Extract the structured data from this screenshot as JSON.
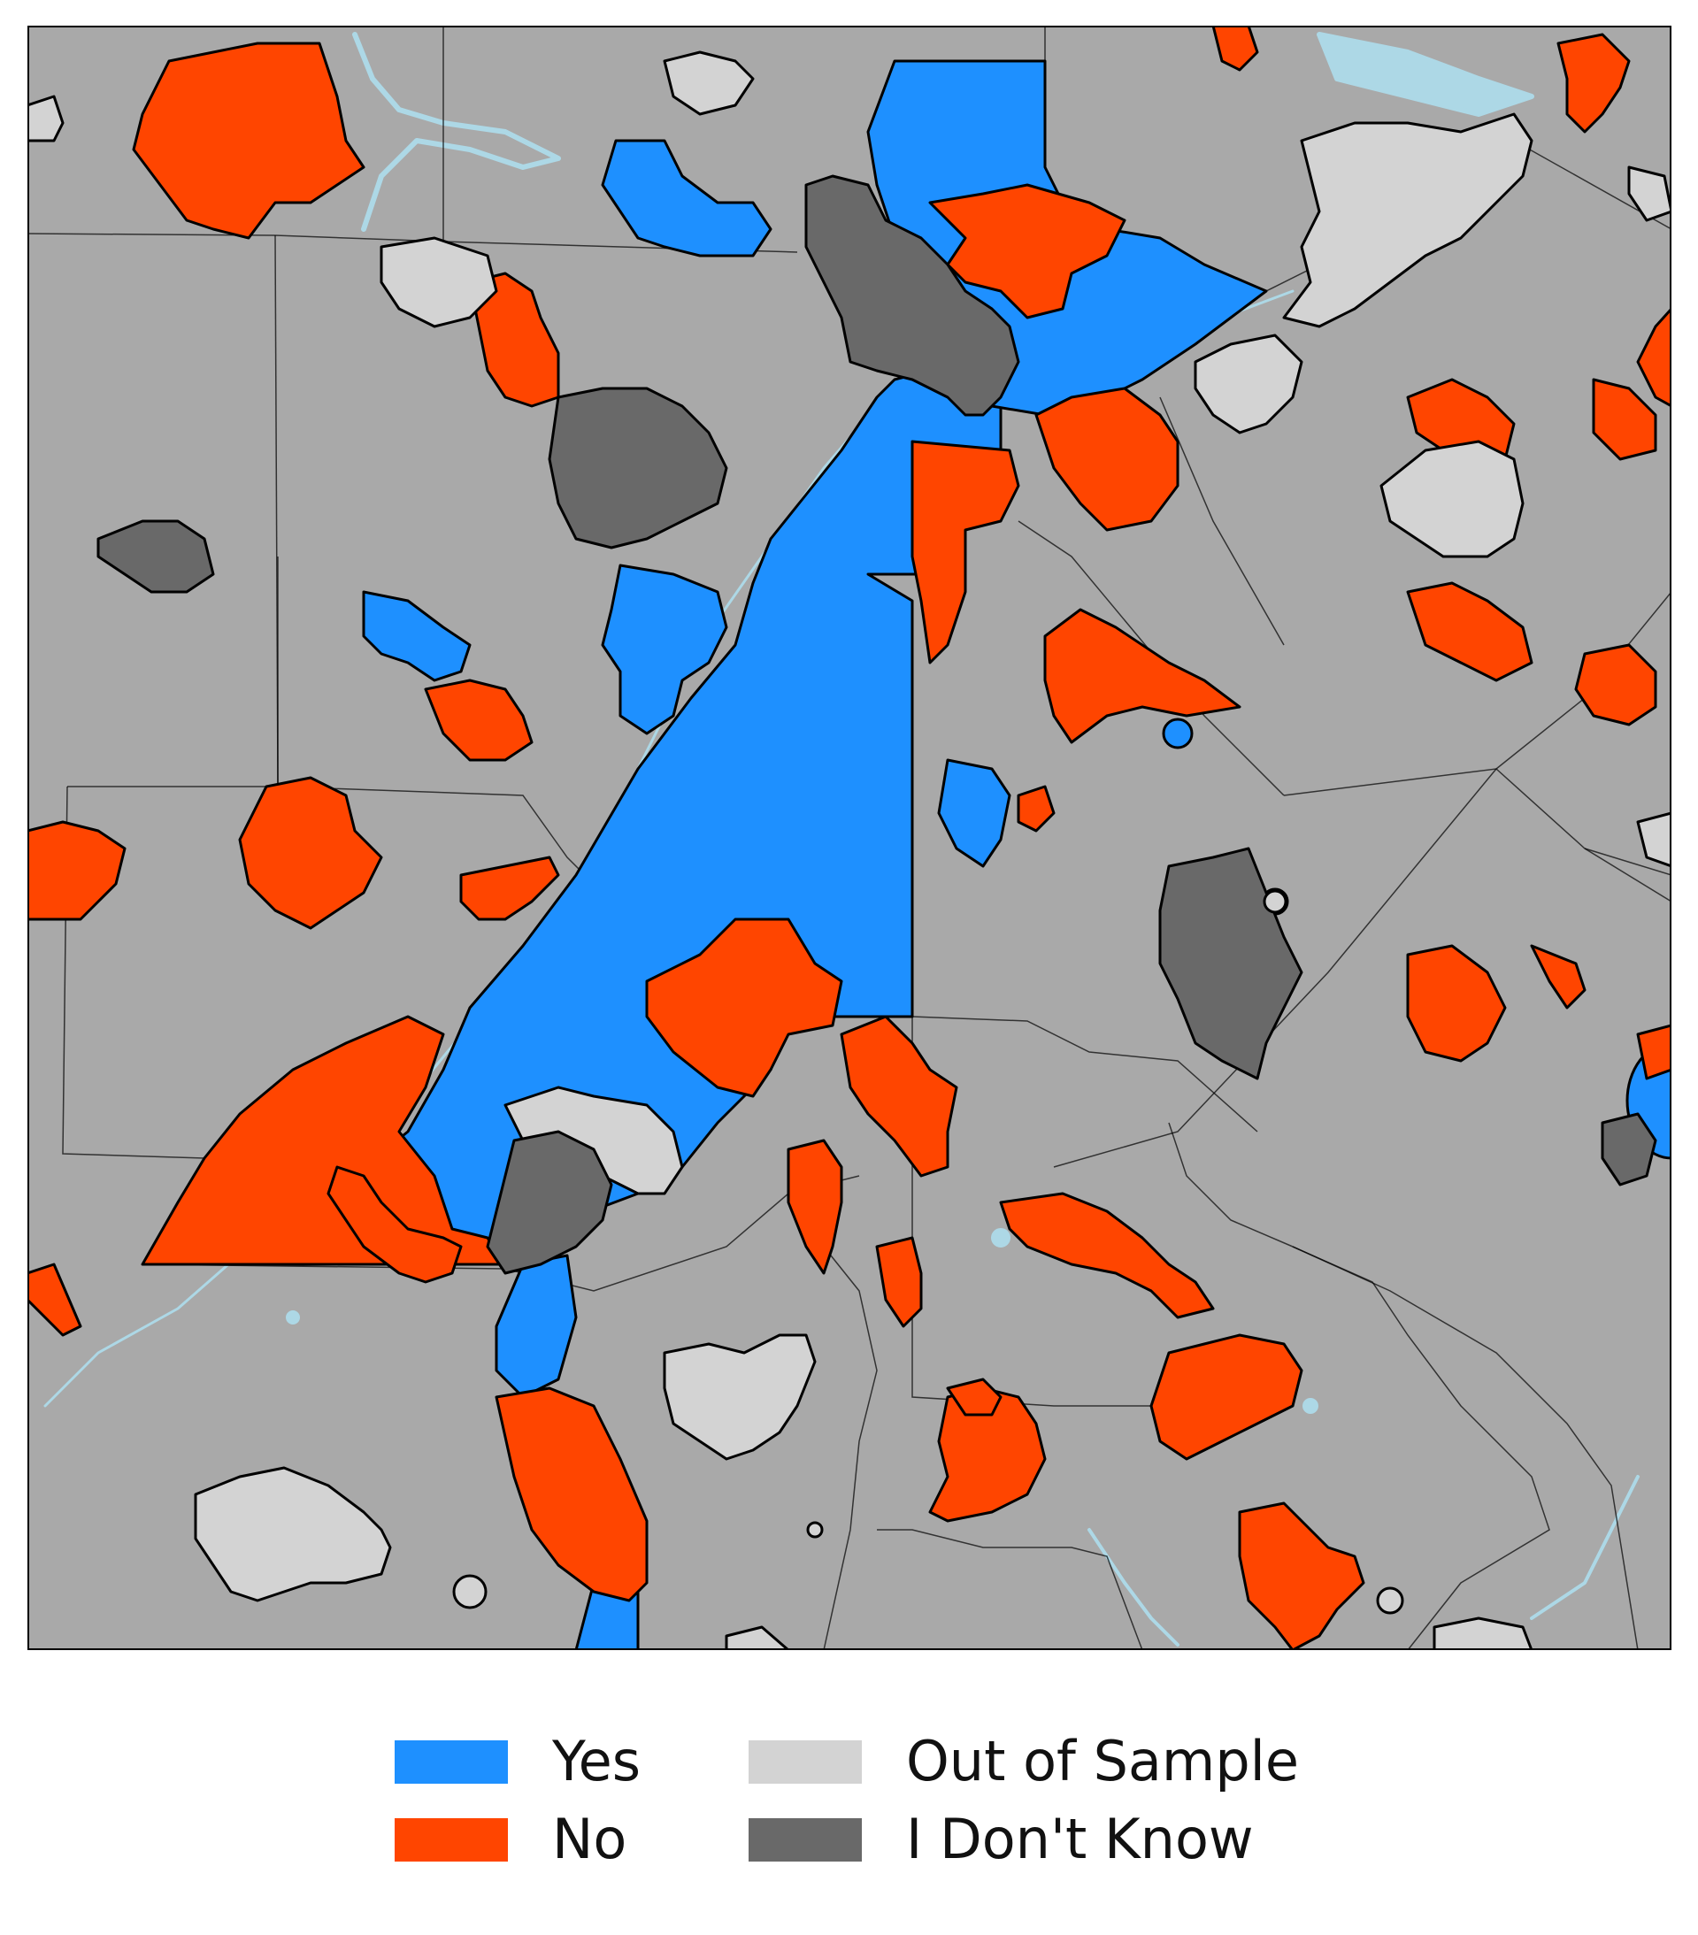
{
  "colors": {
    "background": "#a9a9a9",
    "water": "#add8e6",
    "yes": "#1e90ff",
    "no": "#ff4500",
    "out_of_sample": "#d3d3d3",
    "dont_know": "#696969",
    "boundary": "#000000"
  },
  "legend": {
    "items": [
      {
        "label": "Yes",
        "category": "yes"
      },
      {
        "label": "No",
        "category": "no"
      },
      {
        "label": "Out of Sample",
        "category": "out_of_sample"
      },
      {
        "label": "I Don't Know",
        "category": "dont_know"
      }
    ]
  }
}
